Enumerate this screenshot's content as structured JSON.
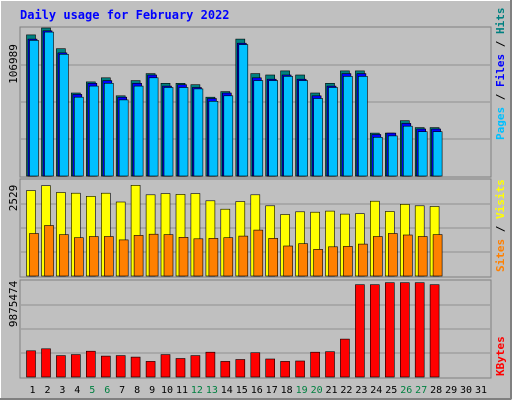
{
  "chart_data": [
    {
      "type": "bar",
      "title": "Daily usage for February 2022",
      "panel": "pages-files-hits",
      "ymax_label": "106989",
      "ylim": [
        0,
        106989
      ],
      "legend": [
        {
          "name": "Pages",
          "color": "#00c0ff"
        },
        {
          "name": "Files",
          "color": "#0000ff"
        },
        {
          "name": "Hits",
          "color": "#008080"
        }
      ],
      "categories": [
        "1",
        "2",
        "3",
        "4",
        "5",
        "6",
        "7",
        "8",
        "9",
        "10",
        "11",
        "12",
        "13",
        "14",
        "15",
        "16",
        "17",
        "18",
        "19",
        "20",
        "21",
        "22",
        "23",
        "24",
        "25",
        "26",
        "27",
        "28",
        "29",
        "30",
        "31"
      ],
      "series": [
        {
          "name": "Hits",
          "values": [
            102000,
            107000,
            92000,
            60000,
            68000,
            71000,
            58000,
            69000,
            74000,
            67000,
            67000,
            66000,
            57000,
            61000,
            99000,
            74000,
            73000,
            76000,
            73000,
            60000,
            67000,
            76000,
            76000,
            31000,
            31000,
            40000,
            35000,
            35000,
            null,
            null,
            null
          ]
        },
        {
          "name": "Files",
          "values": [
            99000,
            105000,
            89000,
            59000,
            67000,
            69000,
            57000,
            67000,
            73000,
            65000,
            66000,
            64000,
            56000,
            60000,
            96000,
            71000,
            70000,
            73000,
            70000,
            58000,
            65000,
            74000,
            74000,
            30000,
            31000,
            38000,
            34000,
            34000,
            null,
            null,
            null
          ]
        },
        {
          "name": "Pages",
          "values": [
            98000,
            104000,
            88000,
            57000,
            65000,
            67000,
            55000,
            65000,
            71000,
            64000,
            64000,
            63000,
            54000,
            58000,
            95000,
            69000,
            69000,
            72000,
            69000,
            56000,
            64000,
            72000,
            72000,
            28000,
            29000,
            36000,
            32000,
            32000,
            null,
            null,
            null
          ]
        }
      ]
    },
    {
      "type": "bar",
      "panel": "visits-sites",
      "ymax_label": "2529",
      "ylim": [
        0,
        2529
      ],
      "legend": [
        {
          "name": "Sites",
          "color": "#ff8000"
        },
        {
          "name": "Visits",
          "color": "#ffff00"
        }
      ],
      "categories": [
        "1",
        "2",
        "3",
        "4",
        "5",
        "6",
        "7",
        "8",
        "9",
        "10",
        "11",
        "12",
        "13",
        "14",
        "15",
        "16",
        "17",
        "18",
        "19",
        "20",
        "21",
        "22",
        "23",
        "24",
        "25",
        "26",
        "27",
        "28",
        "29",
        "30",
        "31"
      ],
      "series": [
        {
          "name": "Visits",
          "values": [
            2250,
            2380,
            2200,
            2180,
            2100,
            2180,
            1950,
            2390,
            2140,
            2170,
            2150,
            2170,
            1980,
            1760,
            1960,
            2140,
            1850,
            1620,
            1690,
            1680,
            1710,
            1630,
            1640,
            1970,
            1700,
            1890,
            1850,
            1830,
            null,
            null,
            null
          ]
        },
        {
          "name": "Sites",
          "values": [
            1120,
            1330,
            1090,
            1010,
            1040,
            1040,
            950,
            1070,
            1100,
            1090,
            1020,
            980,
            990,
            1010,
            1050,
            1210,
            990,
            790,
            850,
            700,
            770,
            780,
            840,
            1040,
            1120,
            1080,
            1040,
            1090,
            null,
            null,
            null
          ]
        }
      ]
    },
    {
      "type": "bar",
      "panel": "kbytes",
      "ymax_label": "9875474",
      "ylim": [
        0,
        9875474
      ],
      "legend": [
        {
          "name": "KBytes",
          "color": "#ff0000"
        }
      ],
      "categories": [
        "1",
        "2",
        "3",
        "4",
        "5",
        "6",
        "7",
        "8",
        "9",
        "10",
        "11",
        "12",
        "13",
        "14",
        "15",
        "16",
        "17",
        "18",
        "19",
        "20",
        "21",
        "22",
        "23",
        "24",
        "25",
        "26",
        "27",
        "28",
        "29",
        "30",
        "31"
      ],
      "series": [
        {
          "name": "KBytes",
          "values": [
            2700000,
            2900000,
            2200000,
            2300000,
            2650000,
            2150000,
            2200000,
            2050000,
            1600000,
            2300000,
            1900000,
            2200000,
            2550000,
            1600000,
            1800000,
            2500000,
            1850000,
            1600000,
            1650000,
            2550000,
            2600000,
            3900000,
            9500000,
            9500000,
            9700000,
            9700000,
            9700000,
            9500000,
            null,
            null,
            null
          ]
        }
      ]
    }
  ],
  "weekend_days": [
    "5",
    "6",
    "12",
    "13",
    "19",
    "20",
    "26",
    "27"
  ],
  "colors": {
    "background": "#c0c0c0",
    "title": "#0000ff",
    "pages": "#00c0ff",
    "files": "#0000ff",
    "hits": "#008080",
    "visits": "#ffff00",
    "sites": "#ff8000",
    "kbytes": "#ff0000",
    "weekday_label": "#000000",
    "weekend_label": "#008040"
  }
}
